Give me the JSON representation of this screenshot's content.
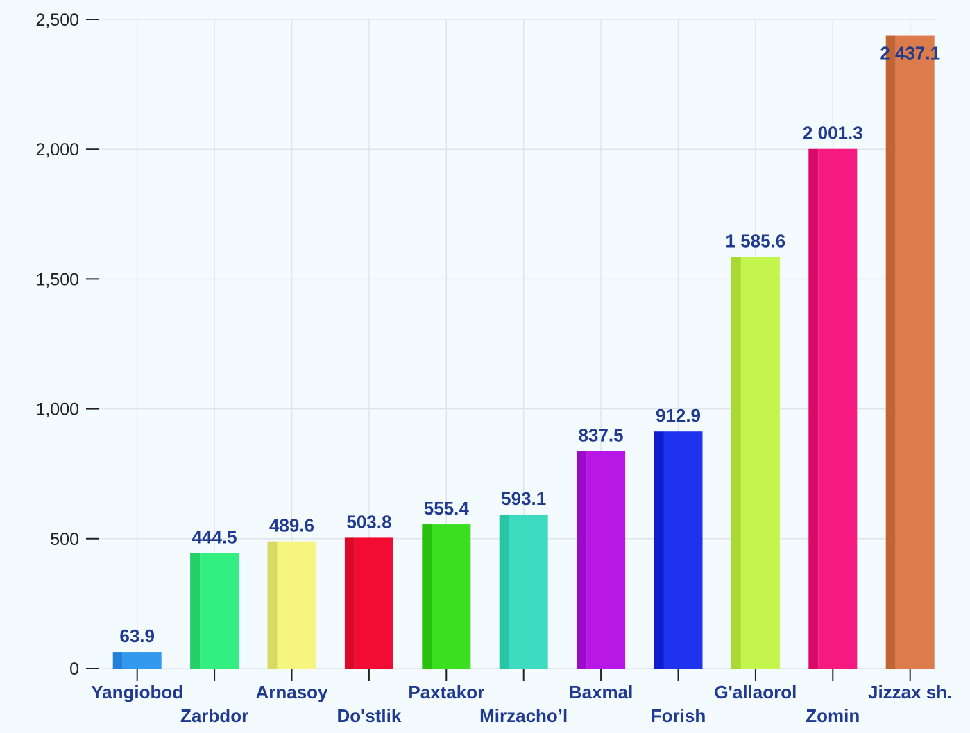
{
  "chart_data": {
    "type": "bar",
    "title": "",
    "xlabel": "",
    "ylabel": "",
    "ylim": [
      0,
      2500
    ],
    "yticks": [
      0,
      500,
      1000,
      1500,
      2000,
      2500
    ],
    "ytick_labels": [
      "0",
      "500",
      "1,000",
      "1,500",
      "2,000",
      "2,500"
    ],
    "grid": true,
    "categories": [
      "Yangiobod",
      "Zarbdor",
      "Arnasoy",
      "Do'stlik",
      "Paxtakor",
      "Mirzacho’l",
      "Baxmal",
      "Forish",
      "G'allaorol",
      "Zomin",
      "Jizzax sh."
    ],
    "values": [
      63.9,
      444.5,
      489.6,
      503.8,
      555.4,
      593.1,
      837.5,
      912.9,
      1585.6,
      2001.3,
      2437.1
    ],
    "value_labels": [
      "63.9",
      "444.5",
      "489.6",
      "503.8",
      "555.4",
      "593.1",
      "837.5",
      "912.9",
      "1 585.6",
      "2 001.3",
      "2 437.1"
    ],
    "colors": [
      "#3399ee",
      "#33ee80",
      "#f5f580",
      "#f20c33",
      "#3ae020",
      "#3ddcc0",
      "#b917e6",
      "#1f33ef",
      "#c4f54c",
      "#f51980",
      "#dc7b4c"
    ],
    "side_colors": [
      "#2280d9",
      "#25d06a",
      "#d9d966",
      "#d90a28",
      "#28c010",
      "#28c4a6",
      "#9a0ac8",
      "#0f1fd0",
      "#a8d935",
      "#d80c68",
      "#c26534"
    ]
  }
}
